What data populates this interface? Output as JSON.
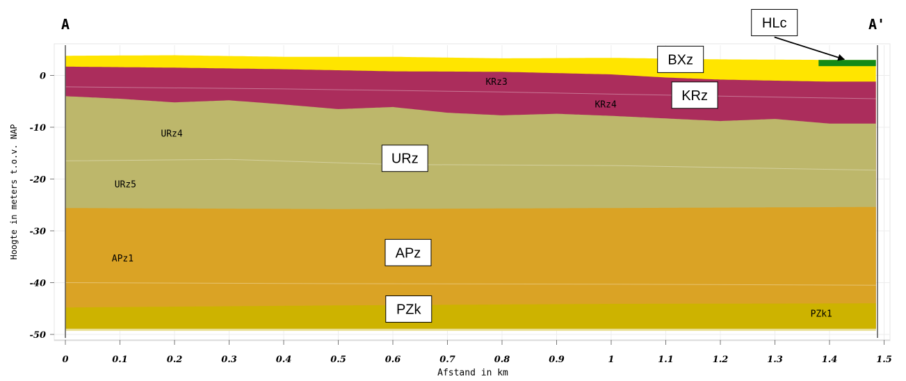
{
  "chart_data": {
    "type": "area",
    "title": "",
    "xlabel": "Afstand in km",
    "ylabel": "Hoogte in meters t.o.v. NAP",
    "xlim": [
      0,
      1.5
    ],
    "ylim": [
      -51.5,
      6
    ],
    "x_ticks": [
      "0",
      "0.1",
      "0.2",
      "0.3",
      "0.4",
      "0.5",
      "0.6",
      "0.7",
      "0.8",
      "0.9",
      "1",
      "1.1",
      "1.2",
      "1.3",
      "1.4",
      "1.5"
    ],
    "y_ticks": [
      "0",
      "-10",
      "-20",
      "-30",
      "-40",
      "-50"
    ],
    "section_start": "A",
    "section_end": "A'",
    "x_extent": [
      0,
      1.485
    ],
    "surface": [
      [
        0,
        3.8
      ],
      [
        0.2,
        3.9
      ],
      [
        0.4,
        3.6
      ],
      [
        0.6,
        3.6
      ],
      [
        0.8,
        3.3
      ],
      [
        1.0,
        3.4
      ],
      [
        1.2,
        3.1
      ],
      [
        1.4,
        3.0
      ],
      [
        1.485,
        3.0
      ]
    ],
    "layers": [
      {
        "unit": "BXz",
        "color": "#ffe500",
        "top": [
          [
            0,
            3.8
          ],
          [
            0.2,
            3.9
          ],
          [
            0.4,
            3.6
          ],
          [
            0.6,
            3.6
          ],
          [
            0.8,
            3.3
          ],
          [
            1.0,
            3.4
          ],
          [
            1.2,
            3.1
          ],
          [
            1.4,
            3.0
          ],
          [
            1.485,
            3.0
          ]
        ]
      },
      {
        "unit": "KRz3",
        "color": "#ab2d5c",
        "top": [
          [
            0,
            1.7
          ],
          [
            0.2,
            1.5
          ],
          [
            0.4,
            1.2
          ],
          [
            0.6,
            0.8
          ],
          [
            0.8,
            0.7
          ],
          [
            1.0,
            0.2
          ],
          [
            1.1,
            -0.4
          ],
          [
            1.2,
            -0.8
          ],
          [
            1.3,
            -1.0
          ],
          [
            1.4,
            -1.2
          ],
          [
            1.485,
            -1.2
          ]
        ]
      },
      {
        "unit": "URz4",
        "color": "#bdb76b",
        "top": [
          [
            0,
            -4.0
          ],
          [
            0.1,
            -4.5
          ],
          [
            0.2,
            -5.2
          ],
          [
            0.3,
            -4.8
          ],
          [
            0.4,
            -5.6
          ],
          [
            0.5,
            -6.5
          ],
          [
            0.6,
            -6.1
          ],
          [
            0.7,
            -7.2
          ],
          [
            0.8,
            -7.7
          ],
          [
            0.9,
            -7.4
          ],
          [
            1.0,
            -7.8
          ],
          [
            1.1,
            -8.3
          ],
          [
            1.2,
            -8.8
          ],
          [
            1.3,
            -8.4
          ],
          [
            1.4,
            -9.3
          ],
          [
            1.485,
            -9.3
          ]
        ]
      },
      {
        "unit": "APz1",
        "color": "#daa325",
        "top": [
          [
            0,
            -25.6
          ],
          [
            0.5,
            -25.8
          ],
          [
            1.0,
            -25.6
          ],
          [
            1.485,
            -25.4
          ]
        ]
      },
      {
        "unit": "PZk1",
        "color": "#cdb300",
        "top": [
          [
            0,
            -44.8
          ],
          [
            0.5,
            -44.4
          ],
          [
            1.0,
            -44.1
          ],
          [
            1.485,
            -44.0
          ]
        ],
        "bottom": [
          [
            0,
            -48.9
          ],
          [
            1.485,
            -48.9
          ]
        ]
      },
      {
        "unit": "HLc",
        "color": "#138a17",
        "top": [
          [
            1.38,
            3.0
          ],
          [
            1.485,
            3.0
          ]
        ],
        "bottom": [
          [
            1.38,
            1.8
          ],
          [
            1.485,
            1.8
          ]
        ]
      }
    ],
    "sublayer_lines": [
      [
        [
          0,
          -2.2
        ],
        [
          0.4,
          -2.6
        ],
        [
          0.8,
          -3.2
        ],
        [
          1.2,
          -4.0
        ],
        [
          1.485,
          -4.5
        ]
      ],
      [
        [
          0,
          -16.5
        ],
        [
          0.3,
          -16.2
        ],
        [
          0.6,
          -17.2
        ],
        [
          1.0,
          -17.4
        ],
        [
          1.485,
          -18.3
        ]
      ],
      [
        [
          0,
          -40.0
        ],
        [
          0.5,
          -40.2
        ],
        [
          1.0,
          -40.3
        ],
        [
          1.485,
          -40.5
        ]
      ]
    ],
    "layer_labels": [
      {
        "text": "KRz3",
        "x": 0.79,
        "y": -1.8
      },
      {
        "text": "KRz4",
        "x": 0.99,
        "y": -6.2
      },
      {
        "text": "URz4",
        "x": 0.195,
        "y": -11.8
      },
      {
        "text": "URz5",
        "x": 0.11,
        "y": -21.6
      },
      {
        "text": "APz1",
        "x": 0.105,
        "y": -35.9
      },
      {
        "text": "PZk1",
        "x": 1.385,
        "y": -46.6
      }
    ],
    "unit_boxes": [
      {
        "text": "HLc",
        "x": 1.299,
        "y": 10.2
      },
      {
        "text": "BXz",
        "x": 1.127,
        "y": 3.1
      },
      {
        "text": "KRz",
        "x": 1.153,
        "y": -3.8
      },
      {
        "text": "URz",
        "x": 0.622,
        "y": -16.0
      },
      {
        "text": "APz",
        "x": 0.628,
        "y": -34.2
      },
      {
        "text": "PZk",
        "x": 0.629,
        "y": -45.1
      }
    ],
    "arrow": {
      "from": [
        1.299,
        7.4
      ],
      "to": [
        1.427,
        3.1
      ]
    }
  }
}
